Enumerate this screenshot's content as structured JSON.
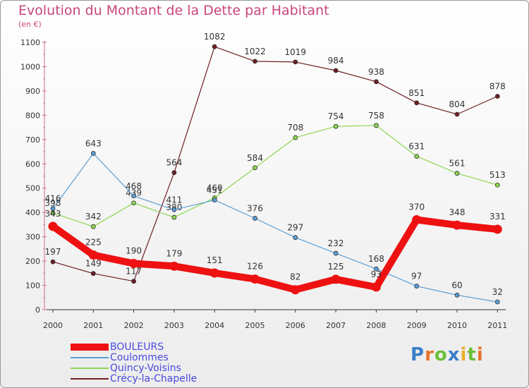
{
  "title": "Evolution du Montant de la Dette par Habitant",
  "unit": "(en €)",
  "logo": {
    "letters": [
      {
        "ch": "P",
        "color": "#3a7fc8"
      },
      {
        "ch": "r",
        "color": "#e8742a"
      },
      {
        "ch": "o",
        "color": "#6cbf3a"
      },
      {
        "ch": "x",
        "color": "#3a7fc8"
      },
      {
        "ch": "i",
        "color": "#e8b02a"
      },
      {
        "ch": "t",
        "color": "#6cbf3a"
      },
      {
        "ch": "i",
        "color": "#e8742a"
      }
    ]
  },
  "chart_data": {
    "type": "line",
    "title": "Evolution du Montant de la Dette par Habitant",
    "ylabel": "(en €)",
    "ylim": [
      0,
      1100
    ],
    "yticks": [
      0,
      100,
      200,
      300,
      400,
      500,
      600,
      700,
      800,
      900,
      1000,
      1100
    ],
    "x": [
      "2000",
      "2001",
      "2002",
      "2003",
      "2004",
      "2005",
      "2006",
      "2007",
      "2008",
      "2009",
      "2010",
      "2011"
    ],
    "grid": false,
    "legend_position": "bottom-left",
    "series": [
      {
        "name": "Crécy-la-Chapelle",
        "color": "#6e1e22",
        "width": 1.2,
        "points": [
          [
            0,
            197
          ],
          [
            1,
            149
          ],
          [
            2,
            117
          ],
          [
            3,
            564
          ],
          [
            4,
            1082
          ],
          [
            5,
            1022
          ],
          [
            6,
            1019
          ],
          [
            7,
            984
          ],
          [
            8,
            938
          ],
          [
            9,
            851
          ],
          [
            10,
            804
          ],
          [
            11,
            878
          ]
        ],
        "labels": [
          "197",
          "149",
          "117",
          "564",
          "1082",
          "1022",
          "1019",
          "984",
          "938",
          "851",
          "804",
          "878"
        ]
      },
      {
        "name": "Quincy-Voisins",
        "color": "#8cd650",
        "width": 1.2,
        "points": [
          [
            0,
            398
          ],
          [
            1,
            342
          ],
          [
            2,
            439
          ],
          [
            3,
            380
          ],
          [
            4,
            460
          ],
          [
            5,
            584
          ],
          [
            6,
            708
          ],
          [
            7,
            754
          ],
          [
            8,
            758
          ],
          [
            9,
            631
          ],
          [
            10,
            561
          ],
          [
            11,
            513
          ]
        ],
        "labels": [
          "398",
          "342",
          "439",
          "380",
          "460",
          "584",
          "708",
          "754",
          "758",
          "631",
          "561",
          "513"
        ]
      },
      {
        "name": "Coulommes",
        "color": "#5a9ed6",
        "width": 1.2,
        "points": [
          [
            0,
            416
          ],
          [
            1,
            643
          ],
          [
            2,
            468
          ],
          [
            3,
            411
          ],
          [
            4,
            451
          ],
          [
            5,
            376
          ],
          [
            6,
            297
          ],
          [
            7,
            232
          ],
          [
            8,
            168
          ],
          [
            9,
            97
          ],
          [
            10,
            60
          ],
          [
            11,
            32
          ]
        ],
        "labels": [
          "416",
          "643",
          "468",
          "411",
          "451",
          "376",
          "297",
          "232",
          "168",
          "97",
          "60",
          "32"
        ]
      },
      {
        "name": "BOULEURS",
        "color": "#ee1111",
        "width": 10,
        "points": [
          [
            0,
            343
          ],
          [
            1,
            225
          ],
          [
            2,
            190
          ],
          [
            3,
            179
          ],
          [
            4,
            151
          ],
          [
            5,
            126
          ],
          [
            6,
            82
          ],
          [
            7,
            125
          ],
          [
            8,
            93
          ],
          [
            9,
            370
          ],
          [
            10,
            348
          ],
          [
            11,
            331
          ]
        ],
        "labels": [
          "343",
          "225",
          "190",
          "179",
          "151",
          "126",
          "82",
          "125",
          "93",
          "370",
          "348",
          "331"
        ]
      }
    ],
    "legend": [
      {
        "name": "BOULEURS",
        "color": "#ee1111",
        "width": 10
      },
      {
        "name": "Coulommes",
        "color": "#5a9ed6",
        "width": 2
      },
      {
        "name": "Quincy-Voisins",
        "color": "#8cd650",
        "width": 2
      },
      {
        "name": "Crécy-la-Chapelle",
        "color": "#6e1e22",
        "width": 2
      }
    ]
  }
}
